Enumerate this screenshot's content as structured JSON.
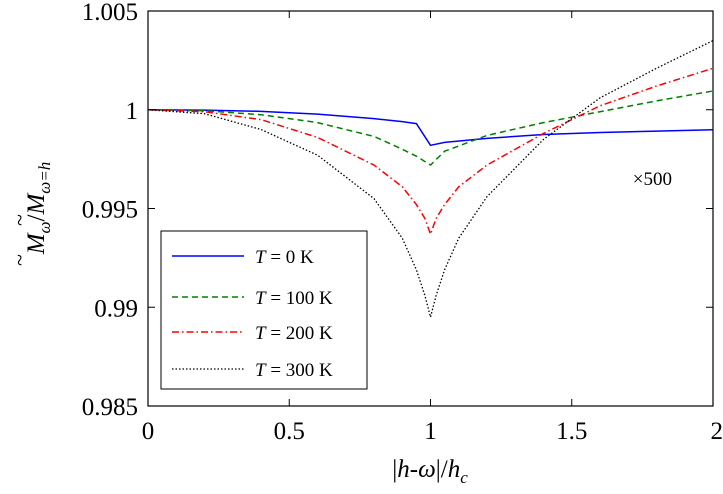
{
  "chart_data": {
    "type": "line",
    "xlabel": "|h-ω|/h_c",
    "xlabel_parts": {
      "abs_open": "|",
      "h": "h",
      "dash": "-",
      "omega": "ω",
      "abs_close": "|/",
      "h2": "h",
      "sub": "c"
    },
    "ylabel_parts": {
      "m1": "M",
      "s1": "ω",
      "slash": "/",
      "m2": "M",
      "s2": "ω=h",
      "tilde": "~"
    },
    "xlim": [
      0,
      2
    ],
    "ylim": [
      0.985,
      1.005
    ],
    "x_ticks": [
      0,
      0.5,
      1,
      1.5,
      2
    ],
    "x_tick_labels": [
      "0",
      "0.5",
      "1",
      "1.5",
      "2"
    ],
    "y_ticks": [
      0.985,
      0.99,
      0.995,
      1,
      1.005
    ],
    "y_tick_labels": [
      "0.985",
      "0.99",
      "0.995",
      "1",
      "1.005"
    ],
    "grid": false,
    "legend_position": "lower-left",
    "annotation": "×500",
    "series": [
      {
        "name": "T = 0 K",
        "legend": {
          "T": "T",
          "rest": "= 0 K"
        },
        "color": "#0000ff",
        "style": "solid",
        "x": [
          0,
          0.2,
          0.4,
          0.6,
          0.8,
          0.9,
          0.95,
          1.0,
          1.05,
          1.2,
          1.4,
          1.6,
          1.8,
          2.0
        ],
        "y": [
          1.0,
          0.99998,
          0.99992,
          0.99978,
          0.99955,
          0.9994,
          0.9993,
          0.9982,
          0.99835,
          0.99855,
          0.99875,
          0.99885,
          0.99892,
          0.99899
        ]
      },
      {
        "name": "T = 100 K",
        "legend": {
          "T": "T",
          "rest": "= 100 K"
        },
        "color": "#008000",
        "style": "dashed",
        "x": [
          0,
          0.2,
          0.4,
          0.6,
          0.8,
          0.9,
          0.95,
          1.0,
          1.05,
          1.2,
          1.4,
          1.6,
          1.8,
          2.0
        ],
        "y": [
          1.0,
          0.99995,
          0.99975,
          0.99935,
          0.99865,
          0.998,
          0.99765,
          0.9972,
          0.9979,
          0.9987,
          0.99935,
          0.9999,
          1.00045,
          1.00095
        ]
      },
      {
        "name": "T = 200 K",
        "legend": {
          "T": "T",
          "rest": "= 200 K"
        },
        "color": "#ff0000",
        "style": "dashdot",
        "x": [
          0,
          0.2,
          0.4,
          0.6,
          0.8,
          0.9,
          0.95,
          0.98,
          1.0,
          1.02,
          1.05,
          1.1,
          1.2,
          1.4,
          1.6,
          1.8,
          2.0
        ],
        "y": [
          1.0,
          0.9999,
          0.9995,
          0.9986,
          0.9972,
          0.9961,
          0.9952,
          0.9945,
          0.9937,
          0.9945,
          0.9952,
          0.9961,
          0.9972,
          0.9988,
          1.0002,
          1.0012,
          1.0021
        ]
      },
      {
        "name": "T = 300 K",
        "legend": {
          "T": "T",
          "rest": "= 300 K"
        },
        "color": "#000000",
        "style": "dotted",
        "x": [
          0,
          0.2,
          0.4,
          0.6,
          0.8,
          0.9,
          0.95,
          0.98,
          1.0,
          1.02,
          1.05,
          1.1,
          1.2,
          1.4,
          1.6,
          1.8,
          2.0
        ],
        "y": [
          1.0,
          0.9998,
          0.999,
          0.9977,
          0.9955,
          0.9935,
          0.9919,
          0.9906,
          0.9895,
          0.9906,
          0.9919,
          0.9935,
          0.9956,
          0.9985,
          1.0006,
          1.0021,
          1.0035
        ]
      }
    ]
  }
}
